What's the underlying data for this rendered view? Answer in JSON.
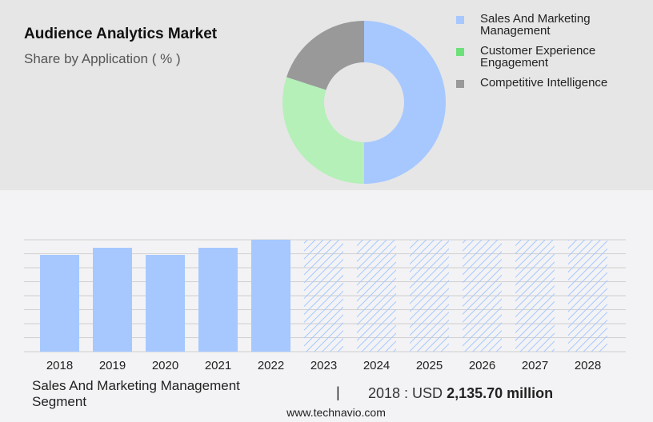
{
  "header": {
    "title": "Audience Analytics Market",
    "subtitle": "Share by Application ( % )"
  },
  "colors": {
    "sales": "#a6c8ff",
    "customer": "#b4f0b8",
    "competitive": "#999999",
    "hatch": "#a6c8ff"
  },
  "legend": [
    {
      "label": "Sales And Marketing Management",
      "color": "#a6c8ff"
    },
    {
      "label": "Customer Experience Engagement",
      "color": "#6ee07a"
    },
    {
      "label": "Competitive Intelligence",
      "color": "#999999"
    }
  ],
  "chart_data": [
    {
      "type": "pie",
      "variant": "donut",
      "categories": [
        "Sales And Marketing Management",
        "Customer Experience Engagement",
        "Competitive Intelligence"
      ],
      "values": [
        50,
        30,
        20
      ],
      "colors": [
        "#a6c8ff",
        "#b4f0b8",
        "#999999"
      ]
    },
    {
      "type": "bar",
      "categories": [
        "2018",
        "2019",
        "2020",
        "2021",
        "2022",
        "2023",
        "2024",
        "2025",
        "2026",
        "2027",
        "2028"
      ],
      "values": [
        121,
        130,
        121,
        130,
        140,
        140,
        140,
        140,
        140,
        140,
        140
      ],
      "forecast_from": "2023",
      "ylim": [
        0,
        140
      ],
      "grid": true
    }
  ],
  "footer": {
    "segment": "Sales And Marketing Management Segment",
    "divider": "|",
    "stat_prefix": "2018 : USD",
    "stat_value": "2,135.70 million",
    "source": "www.technavio.com"
  }
}
